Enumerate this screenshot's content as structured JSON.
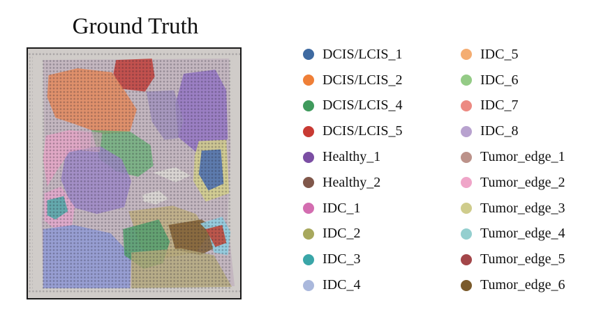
{
  "title": "Ground Truth",
  "legend": [
    {
      "label": "DCIS/LCIS_1",
      "color": "#3e6aa1"
    },
    {
      "label": "DCIS/LCIS_2",
      "color": "#ef7f37"
    },
    {
      "label": "DCIS/LCIS_4",
      "color": "#3f9a5c"
    },
    {
      "label": "DCIS/LCIS_5",
      "color": "#c83a33"
    },
    {
      "label": "Healthy_1",
      "color": "#7b4ea3"
    },
    {
      "label": "Healthy_2",
      "color": "#80574a"
    },
    {
      "label": "IDC_1",
      "color": "#d36db0"
    },
    {
      "label": "IDC_2",
      "color": "#a7a85d"
    },
    {
      "label": "IDC_3",
      "color": "#3aa6a8"
    },
    {
      "label": "IDC_4",
      "color": "#aab8dc"
    },
    {
      "label": "IDC_5",
      "color": "#f4ad72"
    },
    {
      "label": "IDC_6",
      "color": "#94cb86"
    },
    {
      "label": "IDC_7",
      "color": "#ec8a82"
    },
    {
      "label": "IDC_8",
      "color": "#b8a2cf"
    },
    {
      "label": "Tumor_edge_1",
      "color": "#bc928a"
    },
    {
      "label": "Tumor_edge_2",
      "color": "#efa5c8"
    },
    {
      "label": "Tumor_edge_3",
      "color": "#cfcc8c"
    },
    {
      "label": "Tumor_edge_4",
      "color": "#94cfcf"
    },
    {
      "label": "Tumor_edge_5",
      "color": "#a34649"
    },
    {
      "label": "Tumor_edge_6",
      "color": "#7a5a2b"
    }
  ]
}
